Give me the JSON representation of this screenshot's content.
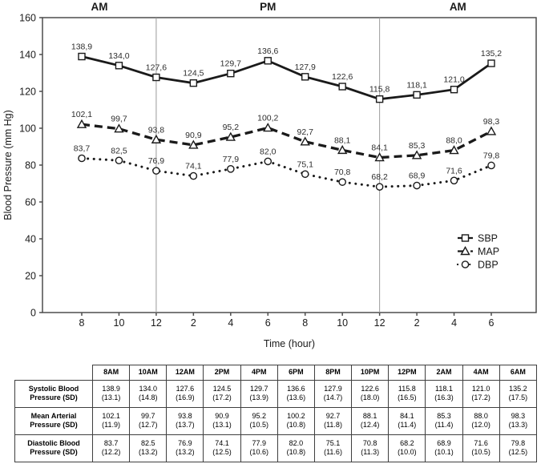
{
  "chart": {
    "section_labels": [
      "AM",
      "PM",
      "AM"
    ],
    "ylabel": "Blood Pressure (mm Hg)",
    "xlabel": "Time (hour)",
    "legend": [
      {
        "label": "SBP",
        "marker": "square",
        "line": "solid"
      },
      {
        "label": "MAP",
        "marker": "triangle",
        "line": "dashed"
      },
      {
        "label": "DBP",
        "marker": "circle",
        "line": "dotted"
      }
    ],
    "colors": {
      "line": "#1a1a1a",
      "frame": "#4d4d4d",
      "divider": "#9a9a9a",
      "point_label_text": "#2e2e2e"
    }
  },
  "chart_data": {
    "type": "line",
    "title": "",
    "xlabel": "Time (hour)",
    "ylabel": "Blood Pressure (mm Hg)",
    "ylim": [
      0,
      160
    ],
    "yticks": [
      0,
      20,
      40,
      60,
      80,
      100,
      120,
      140,
      160
    ],
    "x_tick_labels": [
      "8",
      "10",
      "12",
      "2",
      "4",
      "6",
      "8",
      "10",
      "12",
      "2",
      "4",
      "6"
    ],
    "time_sections": [
      "AM",
      "PM",
      "AM"
    ],
    "divider_indices": [
      2,
      8
    ],
    "grid": false,
    "legend_position": "right-lower",
    "series": [
      {
        "name": "SBP",
        "marker": "square",
        "line_style": "solid",
        "values": [
          138.9,
          134.0,
          127.6,
          124.5,
          129.7,
          136.6,
          127.9,
          122.6,
          115.8,
          118.1,
          121.0,
          135.2
        ],
        "point_labels": [
          "138,9",
          "134,0",
          "127,6",
          "124,5",
          "129,7",
          "136,6",
          "127,9",
          "122,6",
          "115,8",
          "118,1",
          "121,0",
          "135,2"
        ]
      },
      {
        "name": "MAP",
        "marker": "triangle",
        "line_style": "dashed",
        "values": [
          102.1,
          99.7,
          93.8,
          90.9,
          95.2,
          100.2,
          92.7,
          88.1,
          84.1,
          85.3,
          88.0,
          98.3
        ],
        "point_labels": [
          "102,1",
          "99,7",
          "93,8",
          "90,9",
          "95,2",
          "100,2",
          "92,7",
          "88,1",
          "84,1",
          "85,3",
          "88,0",
          "98,3"
        ]
      },
      {
        "name": "DBP",
        "marker": "circle",
        "line_style": "dotted",
        "values": [
          83.7,
          82.5,
          76.9,
          74.1,
          77.9,
          82.0,
          75.1,
          70.8,
          68.2,
          68.9,
          71.6,
          79.8
        ],
        "point_labels": [
          "83,7",
          "82,5",
          "76,9",
          "74,1",
          "77,9",
          "82,0",
          "75,1",
          "70,8",
          "68,2",
          "68,9",
          "71,6",
          "79,8"
        ]
      }
    ]
  },
  "table": {
    "corner": "",
    "col_headers": [
      "8AM",
      "10AM",
      "12AM",
      "2PM",
      "4PM",
      "6PM",
      "8PM",
      "10PM",
      "12PM",
      "2AM",
      "4AM",
      "6AM"
    ],
    "rows": [
      {
        "label_lines": [
          "Systolic Blood",
          "Pressure (SD)"
        ],
        "values": [
          "138.9",
          "134.0",
          "127.6",
          "124.5",
          "129.7",
          "136.6",
          "127.9",
          "122.6",
          "115.8",
          "118.1",
          "121.0",
          "135.2"
        ],
        "sd": [
          "(13.1)",
          "(14.8)",
          "(16.9)",
          "(17.2)",
          "(13.9)",
          "(13.6)",
          "(14.7)",
          "(18.0)",
          "(16.5)",
          "(16.3)",
          "(17.2)",
          "(17.5)"
        ]
      },
      {
        "label_lines": [
          "Mean Arterial",
          "Pressure (SD)"
        ],
        "values": [
          "102.1",
          "99.7",
          "93.8",
          "90.9",
          "95.2",
          "100.2",
          "92.7",
          "88.1",
          "84.1",
          "85.3",
          "88.0",
          "98.3"
        ],
        "sd": [
          "(11.9)",
          "(12.7)",
          "(13.7)",
          "(13.1)",
          "(10.5)",
          "(10.8)",
          "(11.8)",
          "(12.4)",
          "(11.4)",
          "(11.4)",
          "(12.0)",
          "(13.3)"
        ]
      },
      {
        "label_lines": [
          "Diastolic Blood",
          "Pressure (SD)"
        ],
        "values": [
          "83.7",
          "82.5",
          "76.9",
          "74.1",
          "77.9",
          "82.0",
          "75.1",
          "70.8",
          "68.2",
          "68.9",
          "71.6",
          "79.8"
        ],
        "sd": [
          "(12.2)",
          "(13.2)",
          "(13.2)",
          "(12.5)",
          "(10.6)",
          "(10.8)",
          "(11.6)",
          "(11.3)",
          "(10.0)",
          "(10.1)",
          "(10.5)",
          "(12.5)"
        ]
      }
    ]
  }
}
